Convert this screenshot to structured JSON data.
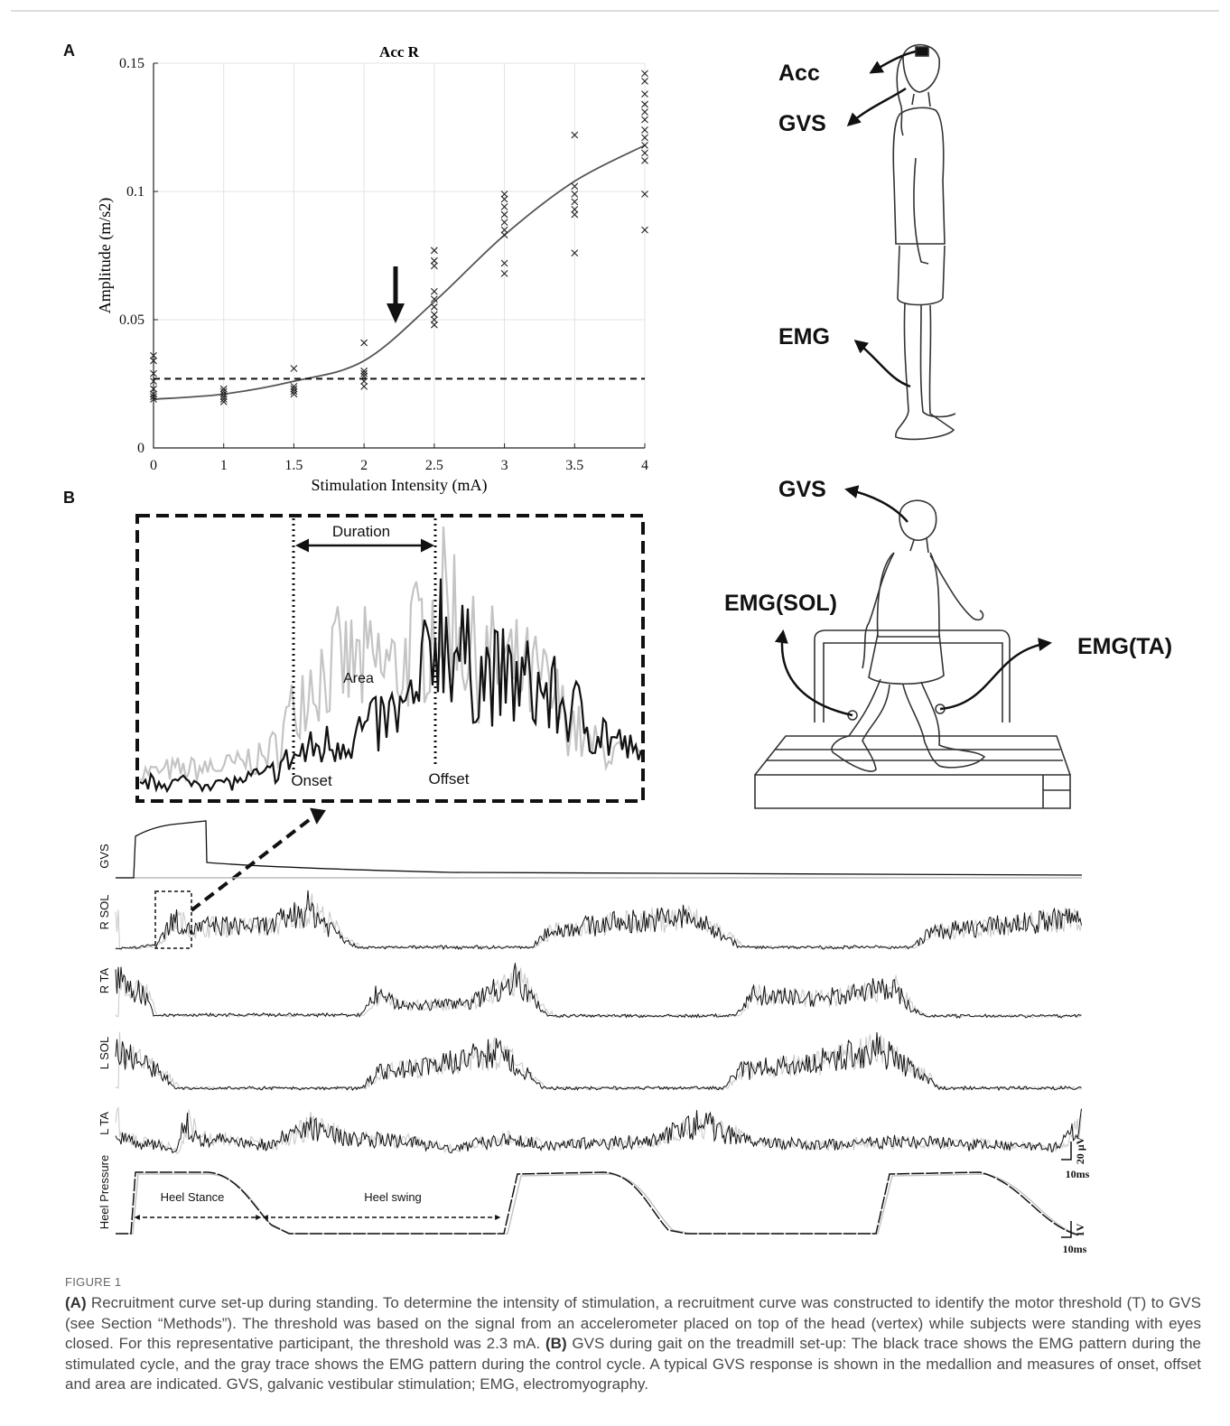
{
  "panel_a": {
    "label": "A",
    "title": "Acc R",
    "x_label": "Stimulation Intensity (mA)",
    "y_label": "Amplitude (m/s2)",
    "categories": [
      "0",
      "1",
      "1.5",
      "2",
      "2.5",
      "3",
      "3.5",
      "4"
    ],
    "ylim": [
      0,
      0.15
    ],
    "yticks": [
      0,
      0.05,
      0.1,
      0.15
    ],
    "grid": true,
    "points": [
      [
        0.036,
        0.034,
        0.029,
        0.026,
        0.023,
        0.021,
        0.02,
        0.019
      ],
      [
        0.023,
        0.022,
        0.021,
        0.02,
        0.019,
        0.018
      ],
      [
        0.031,
        0.024,
        0.023,
        0.022,
        0.021
      ],
      [
        0.041,
        0.03,
        0.029,
        0.028,
        0.026,
        0.024
      ],
      [
        0.077,
        0.073,
        0.071,
        0.061,
        0.058,
        0.055,
        0.052,
        0.05,
        0.048
      ],
      [
        0.099,
        0.097,
        0.094,
        0.091,
        0.088,
        0.085,
        0.083,
        0.072,
        0.068
      ],
      [
        0.122,
        0.102,
        0.099,
        0.096,
        0.093,
        0.091,
        0.076
      ],
      [
        0.146,
        0.143,
        0.138,
        0.134,
        0.131,
        0.128,
        0.124,
        0.121,
        0.118,
        0.115,
        0.112,
        0.099,
        0.085
      ]
    ],
    "fit": [
      0.019,
      0.021,
      0.026,
      0.034,
      0.057,
      0.083,
      0.104,
      0.118
    ],
    "threshold": 0.027
  },
  "standing_setup": {
    "acc": "Acc",
    "gvs": "GVS",
    "emg": "EMG"
  },
  "panel_b": {
    "label": "B",
    "inset": {
      "duration": "Duration",
      "area": "Area",
      "onset": "Onset",
      "offset": "Offset"
    },
    "treadmill_setup": {
      "gvs": "GVS",
      "emg_sol": "EMG(SOL)",
      "emg_ta": "EMG(TA)"
    },
    "channels": [
      "GVS",
      "R SOL",
      "R TA",
      "L SOL",
      "L TA",
      "Heel Pressure"
    ],
    "phases": {
      "stance": "Heel Stance",
      "swing": "Heel swing"
    },
    "scale_bars": {
      "emg_amplitude": "20 µV",
      "emg_time": "10ms",
      "pressure_amplitude": "1V",
      "pressure_time": "10ms"
    }
  },
  "caption": {
    "figure": "FIGURE 1",
    "a_tag": "(A)",
    "a_text": " Recruitment curve set-up during standing. To determine the intensity of stimulation, a recruitment curve was constructed to identify the motor threshold (T) to GVS (see Section “Methods”). The threshold was based on the signal from an accelerometer placed on top of the head (vertex) while subjects were standing with eyes closed. For this representative participant, the threshold was 2.3 mA. ",
    "b_tag": "(B)",
    "b_text": " GVS during gait on the treadmill set-up: The black trace shows the EMG pattern during the stimulated cycle, and the gray trace shows the EMG pattern during the control cycle. A typical GVS response is shown in the medallion and measures of onset, offset and area are indicated. GVS, galvanic vestibular stimulation; EMG, electromyography."
  }
}
